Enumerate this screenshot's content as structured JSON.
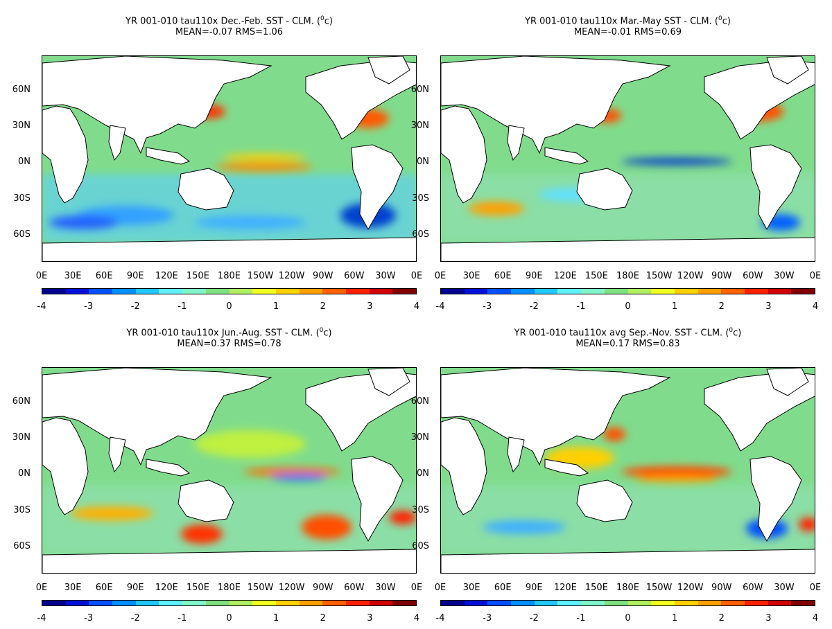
{
  "panels": [
    {
      "title_prefix": "YR 001-010 tau110x  Dec.-Feb. SST - CLM. (",
      "title_sup": "0",
      "title_suffix": "c)",
      "stats": "MEAN=-0.07   RMS=1.06"
    },
    {
      "title_prefix": "YR 001-010 tau110x Mar.-May SST - CLM. (",
      "title_sup": "0",
      "title_suffix": "c)",
      "stats": "MEAN=-0.01   RMS=0.69"
    },
    {
      "title_prefix": "YR 001-010 tau110x Jun.-Aug. SST - CLM. (",
      "title_sup": "0",
      "title_suffix": "c)",
      "stats": "MEAN=0.37   RMS=0.78"
    },
    {
      "title_prefix": "YR 001-010 tau110x avg Sep.-Nov. SST - CLM. (",
      "title_sup": "0",
      "title_suffix": "c)",
      "stats": "MEAN=0.17   RMS=0.83"
    }
  ],
  "lat_ticks": [
    "60N",
    "30N",
    "0N",
    "30S",
    "60S"
  ],
  "lon_ticks": [
    "0E",
    "30E",
    "60E",
    "90E",
    "120E",
    "150E",
    "180E",
    "150W",
    "120W",
    "90W",
    "60W",
    "30W",
    "0E"
  ],
  "colorbar_ticks": [
    "-4",
    "-3",
    "-2",
    "-1",
    "0",
    "1",
    "2",
    "3",
    "4"
  ],
  "colorbar_colors": [
    "#00008f",
    "#0010d8",
    "#0050ff",
    "#0090ff",
    "#20c8ff",
    "#60f0ff",
    "#7ff5c8",
    "#80e080",
    "#b0f060",
    "#f0ff20",
    "#ffd000",
    "#ffa000",
    "#ff6000",
    "#ff2000",
    "#d00000",
    "#800000"
  ]
}
